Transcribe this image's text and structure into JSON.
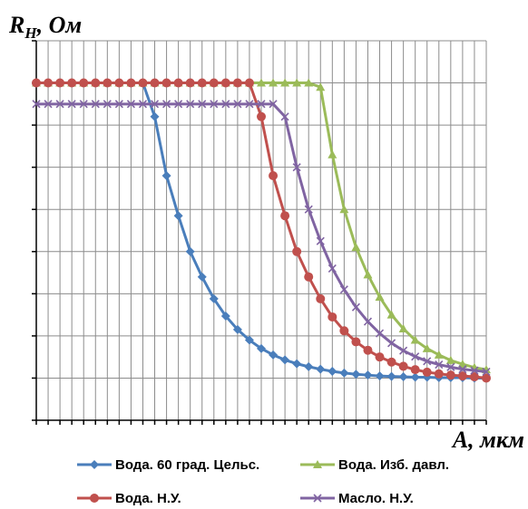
{
  "chart_data": {
    "type": "line",
    "ylabel": {
      "main": "R",
      "sub": "Н",
      "rest": ", Ом"
    },
    "xlabel": "A, мкм",
    "grid": true,
    "legend_position": "bottom",
    "x": [
      0,
      1,
      2,
      3,
      4,
      5,
      6,
      7,
      8,
      9,
      10,
      11,
      12,
      13,
      14,
      15,
      16,
      17,
      18,
      19,
      20,
      21,
      22,
      23,
      24,
      25,
      26,
      27,
      28,
      29,
      30,
      31,
      32,
      33,
      34,
      35,
      36,
      37,
      38
    ],
    "xlim": [
      0,
      38
    ],
    "ylim": [
      0,
      9
    ],
    "series": [
      {
        "name": "Вода. 60 град. Цельс.",
        "color": "#4a7ebb",
        "marker": "diamond",
        "values": [
          8,
          8,
          8,
          8,
          8,
          8,
          8,
          8,
          8,
          8,
          7.2,
          5.8,
          4.85,
          4.0,
          3.4,
          2.88,
          2.47,
          2.15,
          1.9,
          1.7,
          1.55,
          1.43,
          1.34,
          1.27,
          1.21,
          1.16,
          1.12,
          1.09,
          1.07,
          1.05,
          1.04,
          1.03,
          1.02,
          1.02,
          1.01,
          1.01,
          1.01,
          1.0,
          1.0
        ]
      },
      {
        "name": "Вода. Изб. давл.",
        "color": "#9bbb59",
        "marker": "triangle",
        "values": [
          8,
          8,
          8,
          8,
          8,
          8,
          8,
          8,
          8,
          8,
          8,
          8,
          8,
          8,
          8,
          8,
          8,
          8,
          8,
          8,
          8,
          8,
          8,
          8,
          7.9,
          6.3,
          5.0,
          4.1,
          3.45,
          2.92,
          2.5,
          2.17,
          1.9,
          1.7,
          1.55,
          1.42,
          1.33,
          1.25,
          1.2
        ]
      },
      {
        "name": "Вода. Н.У.",
        "color": "#c0504d",
        "marker": "circle",
        "values": [
          8,
          8,
          8,
          8,
          8,
          8,
          8,
          8,
          8,
          8,
          8,
          8,
          8,
          8,
          8,
          8,
          8,
          8,
          8,
          7.2,
          5.8,
          4.85,
          4.0,
          3.4,
          2.88,
          2.45,
          2.12,
          1.86,
          1.66,
          1.5,
          1.38,
          1.28,
          1.2,
          1.14,
          1.1,
          1.07,
          1.05,
          1.03,
          1.0
        ]
      },
      {
        "name": "Масло. Н.У.",
        "color": "#8064a2",
        "marker": "x",
        "values": [
          7.5,
          7.5,
          7.5,
          7.5,
          7.5,
          7.5,
          7.5,
          7.5,
          7.5,
          7.5,
          7.5,
          7.5,
          7.5,
          7.5,
          7.5,
          7.5,
          7.5,
          7.5,
          7.5,
          7.5,
          7.5,
          7.2,
          6.0,
          5.0,
          4.25,
          3.6,
          3.1,
          2.68,
          2.34,
          2.06,
          1.83,
          1.65,
          1.51,
          1.4,
          1.32,
          1.26,
          1.21,
          1.18,
          1.15
        ]
      }
    ]
  }
}
